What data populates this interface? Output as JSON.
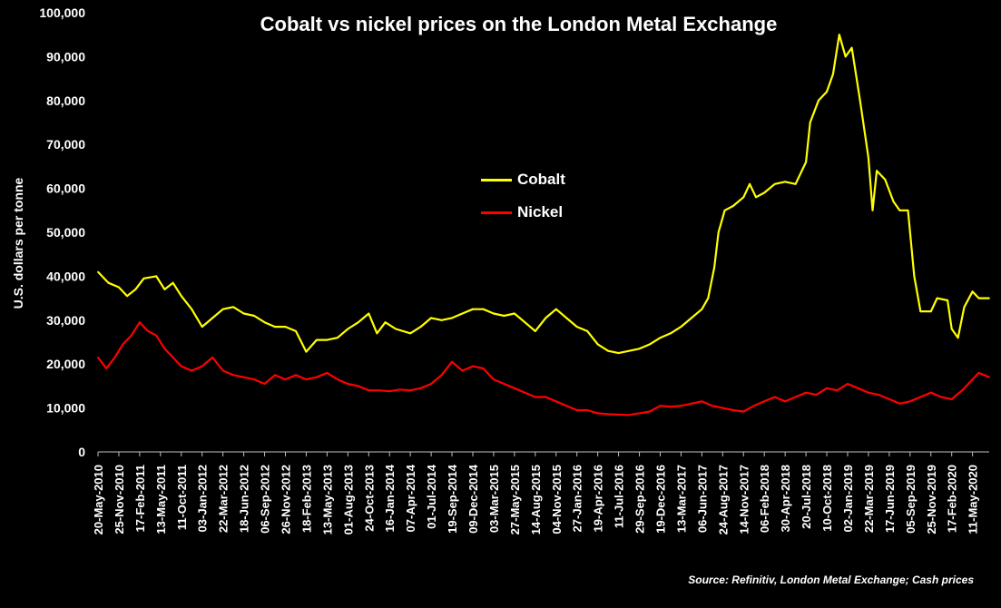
{
  "chart_data": {
    "type": "line",
    "title": "Cobalt vs nickel prices on the London Metal Exchange",
    "ylabel": "U.S. dollars per tonne",
    "xlabel": "",
    "ylim": [
      0,
      100000
    ],
    "yticks": [
      0,
      10000,
      20000,
      30000,
      40000,
      50000,
      60000,
      70000,
      80000,
      90000,
      100000
    ],
    "ytick_labels": [
      "0",
      "10,000",
      "20,000",
      "30,000",
      "40,000",
      "50,000",
      "60,000",
      "70,000",
      "80,000",
      "90,000",
      "100,000"
    ],
    "xtick_labels": [
      "20-May-2010",
      "25-Nov-2010",
      "17-Feb-2011",
      "13-May-2011",
      "11-Oct-2011",
      "03-Jan-2012",
      "22-Mar-2012",
      "18-Jun-2012",
      "06-Sep-2012",
      "26-Nov-2012",
      "18-Feb-2013",
      "13-May-2013",
      "01-Aug-2013",
      "24-Oct-2013",
      "16-Jan-2014",
      "07-Apr-2014",
      "01-Jul-2014",
      "19-Sep-2014",
      "09-Dec-2014",
      "03-Mar-2015",
      "27-May-2015",
      "14-Aug-2015",
      "04-Nov-2015",
      "27-Jan-2016",
      "19-Apr-2016",
      "11-Jul-2016",
      "29-Sep-2016",
      "19-Dec-2016",
      "13-Mar-2017",
      "06-Jun-2017",
      "24-Aug-2017",
      "14-Nov-2017",
      "06-Feb-2018",
      "30-Apr-2018",
      "20-Jul-2018",
      "10-Oct-2018",
      "02-Jan-2019",
      "22-Mar-2019",
      "17-Jun-2019",
      "05-Sep-2019",
      "25-Nov-2019",
      "17-Feb-2020",
      "11-May-2020"
    ],
    "x_index_range": [
      0,
      42.8
    ],
    "series": [
      {
        "name": "Cobalt",
        "color": "#ffff00",
        "points": [
          [
            0,
            41000
          ],
          [
            0.5,
            38500
          ],
          [
            1,
            37500
          ],
          [
            1.4,
            35500
          ],
          [
            1.8,
            37000
          ],
          [
            2.2,
            39500
          ],
          [
            2.8,
            40000
          ],
          [
            3.2,
            37000
          ],
          [
            3.6,
            38500
          ],
          [
            4,
            35500
          ],
          [
            4.5,
            32500
          ],
          [
            5,
            28500
          ],
          [
            5.5,
            30500
          ],
          [
            6,
            32500
          ],
          [
            6.5,
            33000
          ],
          [
            7,
            31500
          ],
          [
            7.5,
            31000
          ],
          [
            8,
            29500
          ],
          [
            8.5,
            28500
          ],
          [
            9,
            28500
          ],
          [
            9.5,
            27500
          ],
          [
            10,
            22800
          ],
          [
            10.5,
            25500
          ],
          [
            11,
            25500
          ],
          [
            11.5,
            26000
          ],
          [
            12,
            28000
          ],
          [
            12.5,
            29500
          ],
          [
            13,
            31500
          ],
          [
            13.4,
            27000
          ],
          [
            13.8,
            29500
          ],
          [
            14.3,
            28000
          ],
          [
            15,
            27000
          ],
          [
            15.5,
            28500
          ],
          [
            16,
            30500
          ],
          [
            16.5,
            30000
          ],
          [
            17,
            30500
          ],
          [
            17.5,
            31500
          ],
          [
            18,
            32500
          ],
          [
            18.5,
            32500
          ],
          [
            19,
            31500
          ],
          [
            19.5,
            31000
          ],
          [
            20,
            31500
          ],
          [
            20.5,
            29500
          ],
          [
            21,
            27500
          ],
          [
            21.5,
            30500
          ],
          [
            22,
            32500
          ],
          [
            22.5,
            30500
          ],
          [
            23,
            28500
          ],
          [
            23.5,
            27500
          ],
          [
            24,
            24500
          ],
          [
            24.5,
            23000
          ],
          [
            25,
            22500
          ],
          [
            25.5,
            23000
          ],
          [
            26,
            23500
          ],
          [
            26.5,
            24500
          ],
          [
            27,
            26000
          ],
          [
            27.5,
            27000
          ],
          [
            28,
            28500
          ],
          [
            28.5,
            30500
          ],
          [
            29,
            32500
          ],
          [
            29.3,
            35000
          ],
          [
            29.6,
            42000
          ],
          [
            29.8,
            50000
          ],
          [
            30.1,
            55000
          ],
          [
            30.5,
            56000
          ],
          [
            31,
            58000
          ],
          [
            31.3,
            61000
          ],
          [
            31.6,
            58000
          ],
          [
            32,
            59000
          ],
          [
            32.5,
            61000
          ],
          [
            33,
            61500
          ],
          [
            33.5,
            61000
          ],
          [
            34,
            66000
          ],
          [
            34.2,
            75000
          ],
          [
            34.6,
            80000
          ],
          [
            35,
            82000
          ],
          [
            35.3,
            86000
          ],
          [
            35.6,
            95000
          ],
          [
            35.9,
            90000
          ],
          [
            36.2,
            92000
          ],
          [
            36.6,
            80000
          ],
          [
            37,
            67000
          ],
          [
            37.2,
            55000
          ],
          [
            37.4,
            64000
          ],
          [
            37.8,
            62000
          ],
          [
            38.2,
            57000
          ],
          [
            38.5,
            55000
          ],
          [
            38.9,
            55000
          ],
          [
            39.2,
            40000
          ],
          [
            39.5,
            32000
          ],
          [
            40,
            32000
          ],
          [
            40.3,
            35000
          ],
          [
            40.8,
            34500
          ],
          [
            41,
            28000
          ],
          [
            41.3,
            26000
          ],
          [
            41.6,
            33000
          ],
          [
            42,
            36500
          ],
          [
            42.3,
            35000
          ],
          [
            42.8,
            35000
          ]
        ]
      },
      {
        "name": "Nickel",
        "color": "#ff0000",
        "points": [
          [
            0,
            21500
          ],
          [
            0.4,
            19000
          ],
          [
            0.8,
            21500
          ],
          [
            1.2,
            24500
          ],
          [
            1.6,
            26500
          ],
          [
            2,
            29500
          ],
          [
            2.4,
            27500
          ],
          [
            2.8,
            26500
          ],
          [
            3.2,
            23500
          ],
          [
            3.6,
            21500
          ],
          [
            4,
            19500
          ],
          [
            4.5,
            18500
          ],
          [
            5,
            19500
          ],
          [
            5.5,
            21500
          ],
          [
            6,
            18500
          ],
          [
            6.5,
            17500
          ],
          [
            7,
            17000
          ],
          [
            7.5,
            16500
          ],
          [
            8,
            15500
          ],
          [
            8.5,
            17500
          ],
          [
            9,
            16500
          ],
          [
            9.5,
            17500
          ],
          [
            10,
            16500
          ],
          [
            10.5,
            17000
          ],
          [
            11,
            18000
          ],
          [
            11.5,
            16500
          ],
          [
            12,
            15500
          ],
          [
            12.5,
            15000
          ],
          [
            13,
            14000
          ],
          [
            13.5,
            14000
          ],
          [
            14,
            13800
          ],
          [
            14.5,
            14200
          ],
          [
            15,
            14000
          ],
          [
            15.5,
            14500
          ],
          [
            16,
            15500
          ],
          [
            16.5,
            17500
          ],
          [
            17,
            20500
          ],
          [
            17.5,
            18500
          ],
          [
            18,
            19500
          ],
          [
            18.5,
            19000
          ],
          [
            19,
            16500
          ],
          [
            19.5,
            15500
          ],
          [
            20,
            14500
          ],
          [
            20.5,
            13500
          ],
          [
            21,
            12500
          ],
          [
            21.5,
            12500
          ],
          [
            22,
            11500
          ],
          [
            22.5,
            10500
          ],
          [
            23,
            9500
          ],
          [
            23.5,
            9500
          ],
          [
            24,
            8800
          ],
          [
            24.5,
            8600
          ],
          [
            25,
            8500
          ],
          [
            25.5,
            8400
          ],
          [
            26,
            8800
          ],
          [
            26.5,
            9200
          ],
          [
            27,
            10500
          ],
          [
            27.5,
            10300
          ],
          [
            28,
            10500
          ],
          [
            28.5,
            11000
          ],
          [
            29,
            11500
          ],
          [
            29.5,
            10500
          ],
          [
            30,
            10000
          ],
          [
            30.5,
            9500
          ],
          [
            31,
            9200
          ],
          [
            31.5,
            10500
          ],
          [
            32,
            11500
          ],
          [
            32.5,
            12500
          ],
          [
            33,
            11500
          ],
          [
            33.5,
            12500
          ],
          [
            34,
            13500
          ],
          [
            34.5,
            13000
          ],
          [
            35,
            14500
          ],
          [
            35.5,
            14000
          ],
          [
            36,
            15500
          ],
          [
            36.5,
            14500
          ],
          [
            37,
            13500
          ],
          [
            37.5,
            13000
          ],
          [
            38,
            12000
          ],
          [
            38.5,
            11000
          ],
          [
            39,
            11500
          ],
          [
            39.5,
            12500
          ],
          [
            40,
            13500
          ],
          [
            40.5,
            12500
          ],
          [
            41,
            12000
          ],
          [
            41.5,
            14000
          ],
          [
            42,
            16500
          ],
          [
            42.3,
            18000
          ],
          [
            42.8,
            17000
          ]
        ]
      }
    ]
  },
  "legend": [
    {
      "label": "Cobalt",
      "color": "#ffff00"
    },
    {
      "label": "Nickel",
      "color": "#ff0000"
    }
  ],
  "source": "Source: Refinitiv, London Metal Exchange; Cash prices"
}
